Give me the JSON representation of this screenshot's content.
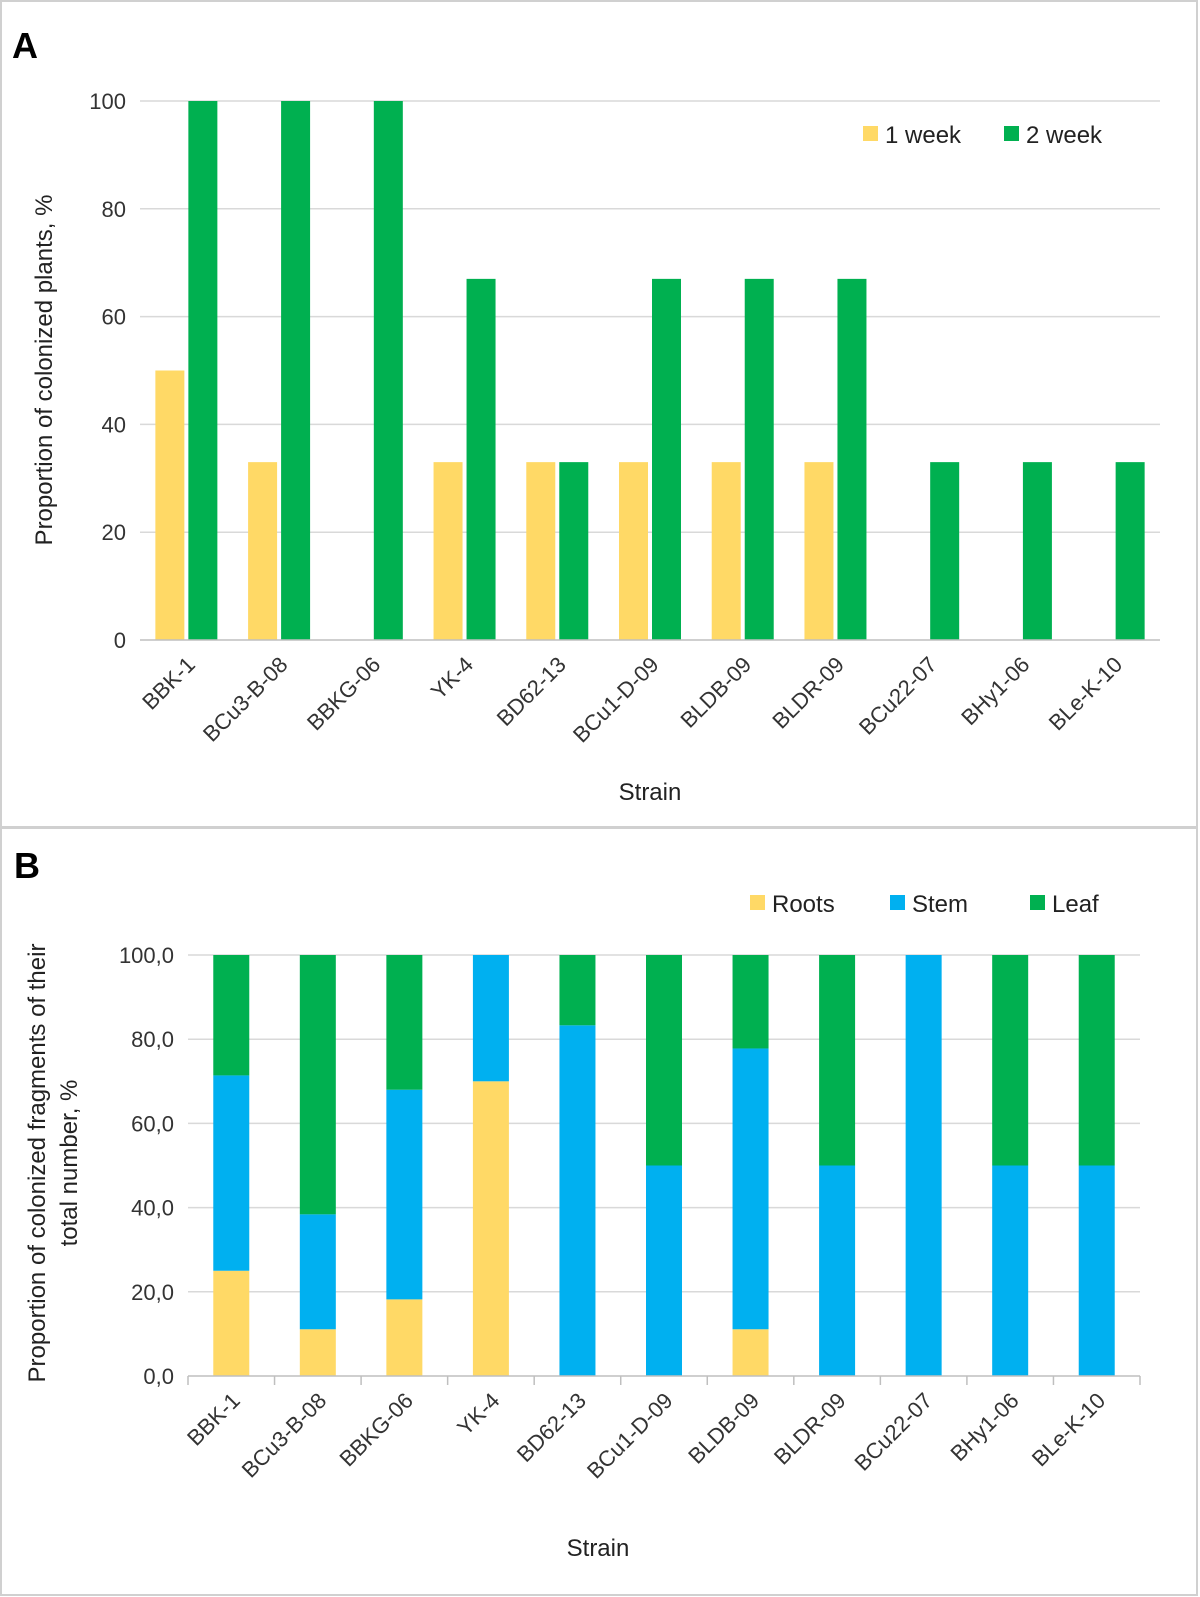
{
  "panels": [
    {
      "letter": "A",
      "chart_data": {
        "type": "bar",
        "title": "",
        "xlabel": "Strain",
        "ylabel": "Proportion of colonized plants, %",
        "categories": [
          "BBK-1",
          "BCu3-B-08",
          "BBKG-06",
          "YK-4",
          "BD62-13",
          "BCu1-D-09",
          "BLDB-09",
          "BLDR-09",
          "BCu22-07",
          "BHy1-06",
          "BLe-K-10"
        ],
        "series": [
          {
            "name": "1 week",
            "color": "#FFD966",
            "values": [
              50,
              33,
              0,
              33,
              33,
              33,
              33,
              33,
              0,
              0,
              0
            ]
          },
          {
            "name": "2 week",
            "color": "#00B050",
            "values": [
              100,
              100,
              100,
              67,
              33,
              67,
              67,
              67,
              33,
              33,
              33
            ]
          }
        ],
        "ylim": [
          0,
          100
        ],
        "yticks": [
          "0",
          "20",
          "40",
          "60",
          "80",
          "100"
        ],
        "legend_position": "top-right",
        "grid": true
      }
    },
    {
      "letter": "B",
      "chart_data": {
        "type": "bar",
        "stacked": true,
        "title": "",
        "xlabel": "Strain",
        "ylabel": [
          "Proportion of colonized fragments of their",
          "total number, %"
        ],
        "categories": [
          "BBK-1",
          "BCu3-B-08",
          "BBKG-06",
          "YK-4",
          "BD62-13",
          "BCu1-D-09",
          "BLDB-09",
          "BLDR-09",
          "BCu22-07",
          "BHy1-06",
          "BLe-K-10"
        ],
        "series": [
          {
            "name": "Roots",
            "color": "#FFD966",
            "values": [
              25,
              11.1,
              18.2,
              70,
              0,
              0,
              11.1,
              0,
              0,
              0,
              0
            ]
          },
          {
            "name": "Stem",
            "color": "#00B0F0",
            "values": [
              46.4,
              27.3,
              49.8,
              30,
              83.3,
              50,
              66.7,
              50,
              100,
              50,
              50
            ]
          },
          {
            "name": "Leaf",
            "color": "#00B050",
            "values": [
              28.6,
              61.6,
              32,
              0,
              16.7,
              50,
              22.2,
              50,
              0,
              50,
              50
            ]
          }
        ],
        "ylim": [
          0,
          100
        ],
        "yticks": [
          "0,0",
          "20,0",
          "40,0",
          "60,0",
          "80,0",
          "100,0"
        ],
        "legend_position": "top-right",
        "grid": true
      }
    }
  ]
}
